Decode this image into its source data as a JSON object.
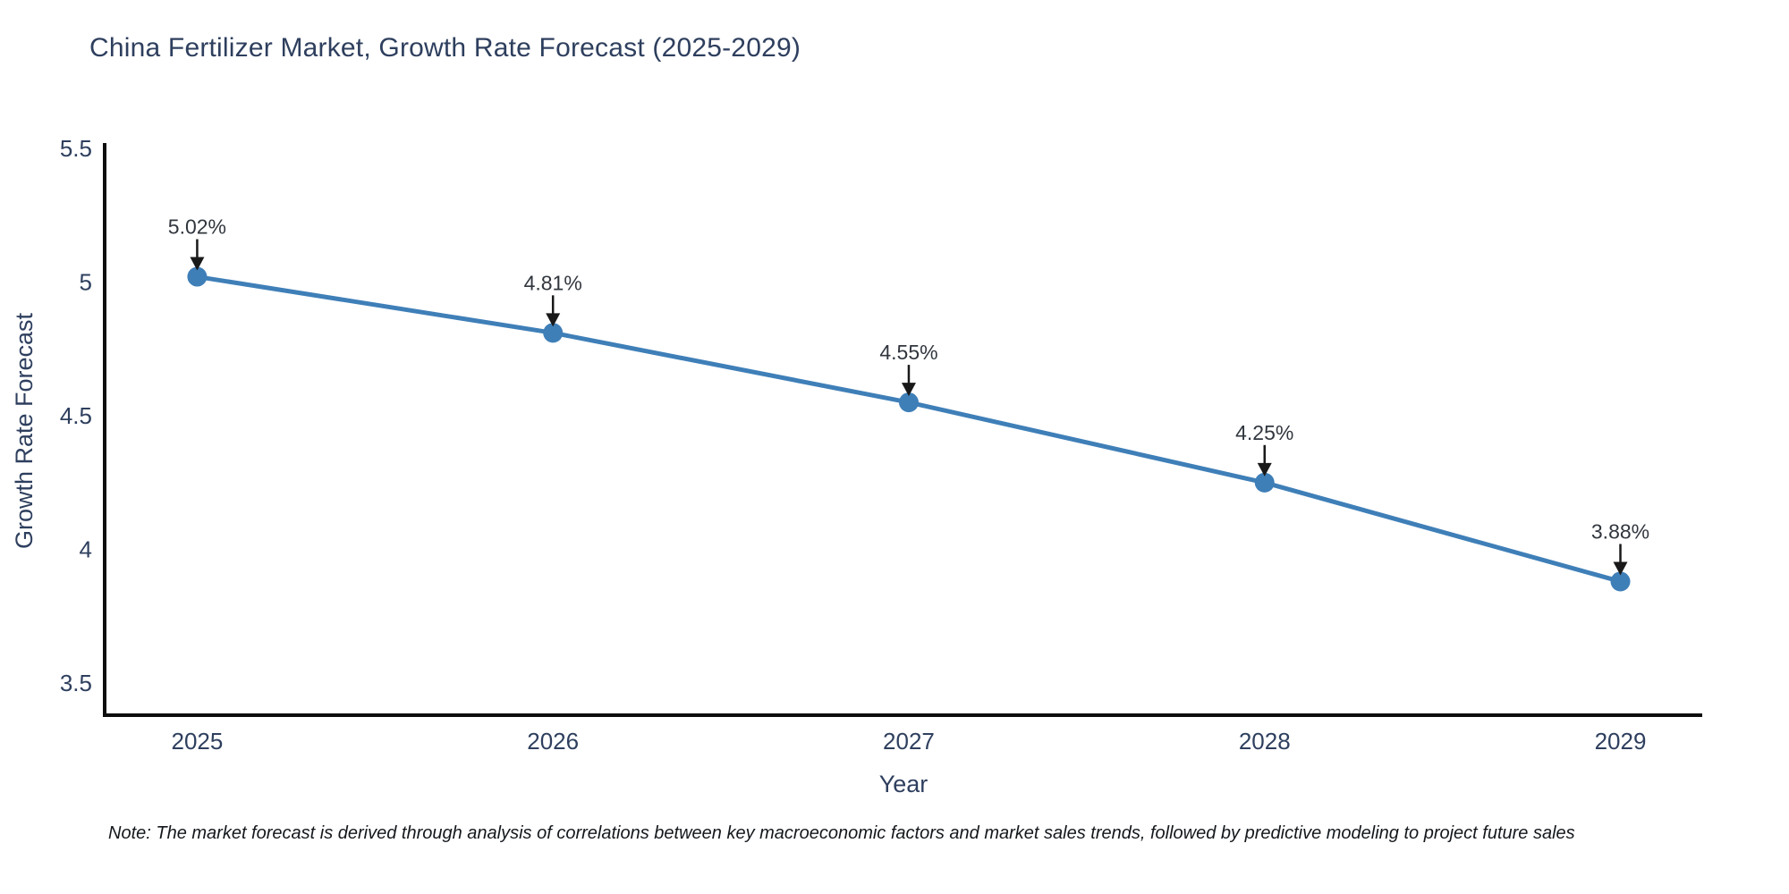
{
  "chart_data": {
    "type": "line",
    "title": "China Fertilizer Market, Growth Rate Forecast (2025-2029)",
    "xlabel": "Year",
    "ylabel": "Growth Rate Forecast",
    "x": [
      2025,
      2026,
      2027,
      2028,
      2029
    ],
    "values": [
      5.02,
      4.81,
      4.55,
      4.25,
      3.88
    ],
    "point_labels": [
      "5.02%",
      "4.81%",
      "4.55%",
      "4.25%",
      "3.88%"
    ],
    "xtick_labels": [
      "2025",
      "2026",
      "2027",
      "2028",
      "2029"
    ],
    "yticks": [
      3.5,
      4,
      4.5,
      5,
      5.5
    ],
    "ytick_labels": [
      "3.5",
      "4",
      "4.5",
      "5",
      "5.5"
    ],
    "xlim": [
      2024.74,
      2029.23
    ],
    "ylim": [
      3.38,
      5.52
    ],
    "grid": false,
    "legend_position": "none",
    "line_color": "#3f7fb8",
    "marker_color": "#3f7fb8",
    "axis_color": "#0d0d0d",
    "tick_text_color": "#2e3f5e",
    "annotation_text_color": "#31363e",
    "annotation_arrow_color": "#191919"
  },
  "note": {
    "text": "Note: The market forecast is derived through analysis of correlations between key macroeconomic factors and market sales trends, followed by predictive modeling to project future sales"
  }
}
